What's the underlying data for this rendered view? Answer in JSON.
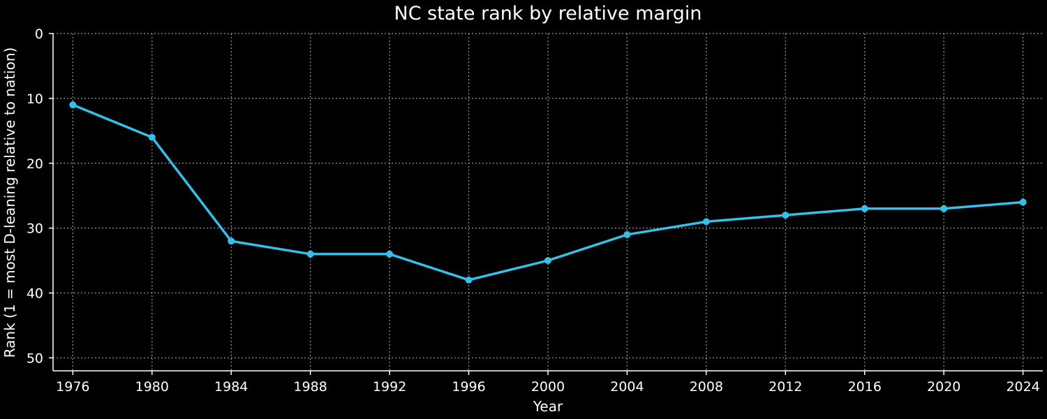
{
  "chart_data": {
    "type": "line",
    "title": "NC state rank by relative margin",
    "xlabel": "Year",
    "ylabel": "Rank (1 = most D-leaning relative to nation)",
    "x": [
      1976,
      1980,
      1984,
      1988,
      1992,
      1996,
      2000,
      2004,
      2008,
      2012,
      2016,
      2020,
      2024
    ],
    "series": [
      {
        "values": [
          11,
          16,
          32,
          34,
          34,
          38,
          35,
          31,
          29,
          28,
          27,
          27,
          26
        ],
        "color": "#35c0ea"
      }
    ],
    "xticks": [
      1976,
      1980,
      1984,
      1988,
      1992,
      1996,
      2000,
      2004,
      2008,
      2012,
      2016,
      2020,
      2024
    ],
    "yticks": [
      0,
      10,
      20,
      30,
      40,
      50
    ],
    "xlim": [
      1975,
      2025
    ],
    "ylim": [
      52,
      0
    ],
    "y_inverted": true,
    "grid": true,
    "background": "#000000",
    "text_color": "#ffffff",
    "grid_color": "#9a9a9a"
  }
}
